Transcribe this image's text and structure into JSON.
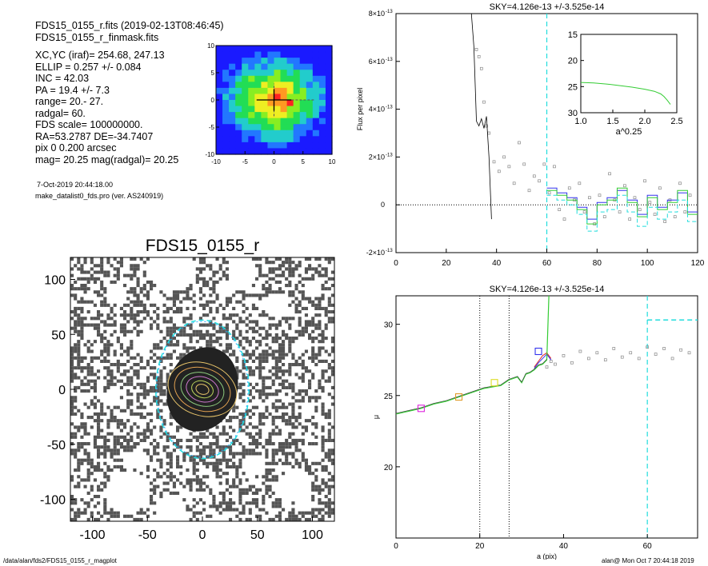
{
  "header": {
    "line1": "FDS15_0155_r.fits  (2019-02-13T08:46:45)",
    "line2": "FDS15_0155_r_finmask.fits"
  },
  "info_lines": [
    "XC,YC (iraf)=   254.68, 247.13",
    "ELLIP = 0.257 +/- 0.084",
    "INC   = 42.03",
    "PA    =  19.4 +/-   7.3",
    "range=  20.-  27.",
    "radgal=  60.",
    "FDS scale=  100000000.",
    "RA=53.2787   DE=-34.7407",
    "pix 0 0.200 arcsec",
    "mag=  20.25  mag(radgal)=  20.25"
  ],
  "date_line": "7-Oct-2019 20:44:18.00",
  "program_line": "make_datalist0_fds.pro (ver. AS240919)",
  "footer": {
    "path": "/data/alan/fds2/FDS15_0155_r_magplot",
    "user": "alan@  Mon Oct  7 20:44:18 2019"
  },
  "colors": {
    "black": "#000000",
    "green": "#33cc33",
    "blue": "#3333ee",
    "cyan": "#22dddd",
    "grey": "#888888",
    "magenta": "#dd22dd",
    "orange": "#e09a2a",
    "yellow_box": "#dddd22"
  },
  "chart_data": [
    {
      "id": "thumbnail",
      "type": "heatmap",
      "xlim": [
        -10,
        10
      ],
      "ylim": [
        -10,
        10
      ],
      "xticks": [
        "-10",
        "-5",
        "0",
        "5",
        "10"
      ],
      "yticks": [
        "10",
        "5",
        "0",
        "-5",
        "-10"
      ],
      "center": [
        0,
        0
      ]
    },
    {
      "id": "image",
      "type": "scatter",
      "title": "FDS15_0155_r",
      "xlim": [
        -120,
        120
      ],
      "ylim": [
        -120,
        120
      ],
      "xticks": [
        "-100",
        "-50",
        "0",
        "50",
        "100"
      ],
      "yticks": [
        "100",
        "50",
        "0",
        "-50",
        "-100"
      ],
      "outer_ellipse_a": 60,
      "ellipticity": 0.257,
      "pa_deg": 19.4
    },
    {
      "id": "sky",
      "type": "line",
      "title": "SKY=4.126e-13 +/-3.525e-14",
      "ylabel": "Flux per pixel",
      "xlim": [
        0,
        120
      ],
      "ylim": [
        -2e-13,
        8e-13
      ],
      "xticks": [
        "0",
        "20",
        "40",
        "60",
        "80",
        "100",
        "120"
      ],
      "yticks": [
        {
          "value": 8e-13,
          "label": "8×10",
          "exp": "-13"
        },
        {
          "value": 6e-13,
          "label": "6×10",
          "exp": "-13"
        },
        {
          "value": 4e-13,
          "label": "4×10",
          "exp": "-13"
        },
        {
          "value": 2e-13,
          "label": "2×10",
          "exp": "-13"
        },
        {
          "value": 0,
          "label": "0",
          "exp": ""
        },
        {
          "value": -2e-13,
          "label": "-2×10",
          "exp": "-13"
        }
      ],
      "radgal_marker": 60,
      "series_black": [
        [
          30,
          8e-13
        ],
        [
          31,
          6.6e-13
        ],
        [
          32,
          3.5e-13
        ],
        [
          33,
          3.3e-13
        ],
        [
          34,
          3.6e-13
        ],
        [
          35,
          3.2e-13
        ],
        [
          36,
          3.7e-13
        ],
        [
          37,
          2e-13
        ],
        [
          38,
          -6e-14
        ]
      ],
      "black_points": [
        [
          32,
          6.5e-13
        ],
        [
          33,
          6.2e-13
        ],
        [
          34,
          5.7e-13
        ],
        [
          35,
          4.3e-13
        ],
        [
          36,
          3.3e-13
        ],
        [
          37,
          3e-13
        ],
        [
          39,
          1.8e-13
        ],
        [
          41,
          1.4e-13
        ],
        [
          43,
          2e-13
        ],
        [
          45,
          1.6e-13
        ],
        [
          47,
          9e-14
        ],
        [
          49,
          2.6e-13
        ],
        [
          51,
          1.7e-13
        ],
        [
          53,
          6e-14
        ],
        [
          55,
          1.2e-13
        ],
        [
          57,
          1e-13
        ],
        [
          59,
          1.7e-13
        ],
        [
          61,
          5e-14
        ],
        [
          63,
          1.6e-13
        ],
        [
          65,
          -2e-14
        ],
        [
          67,
          -6e-14
        ],
        [
          69,
          7e-14
        ],
        [
          71,
          2e-14
        ],
        [
          73,
          9e-14
        ],
        [
          75,
          -3e-14
        ],
        [
          77,
          3e-14
        ],
        [
          79,
          -8e-14
        ],
        [
          81,
          4e-14
        ],
        [
          83,
          -5e-14
        ],
        [
          85,
          1.3e-13
        ],
        [
          87,
          2e-14
        ],
        [
          89,
          -3e-14
        ],
        [
          91,
          8e-14
        ],
        [
          93,
          -6e-14
        ],
        [
          95,
          3e-14
        ],
        [
          97,
          -2e-14
        ],
        [
          99,
          1e-13
        ],
        [
          101,
          1e-14
        ],
        [
          103,
          -4e-14
        ],
        [
          105,
          7e-14
        ],
        [
          107,
          -7e-14
        ],
        [
          109,
          2e-14
        ],
        [
          111,
          -5e-14
        ],
        [
          113,
          9e-14
        ],
        [
          115,
          -3e-14
        ],
        [
          117,
          4e-14
        ]
      ],
      "series_steps": [
        {
          "color": "blue",
          "values": [
            [
              60,
              7e-14
            ],
            [
              64,
              5e-14
            ],
            [
              68,
              3e-14
            ],
            [
              72,
              -1e-14
            ],
            [
              76,
              -6e-14
            ],
            [
              80,
              1e-14
            ],
            [
              84,
              3e-14
            ],
            [
              88,
              6e-14
            ],
            [
              92,
              2e-14
            ],
            [
              96,
              -4e-14
            ],
            [
              100,
              4e-14
            ],
            [
              104,
              -1e-14
            ],
            [
              108,
              2e-14
            ],
            [
              112,
              5e-14
            ],
            [
              116,
              -3e-14
            ],
            [
              120,
              -3e-14
            ]
          ]
        },
        {
          "color": "green",
          "values": [
            [
              60,
              6e-14
            ],
            [
              64,
              4e-14
            ],
            [
              68,
              2e-14
            ],
            [
              72,
              -2e-14
            ],
            [
              76,
              -8e-14
            ],
            [
              80,
              0.0
            ],
            [
              84,
              2e-14
            ],
            [
              88,
              7e-14
            ],
            [
              92,
              1e-14
            ],
            [
              96,
              -5e-14
            ],
            [
              100,
              3e-14
            ],
            [
              104,
              -2e-14
            ],
            [
              108,
              1e-14
            ],
            [
              112,
              6e-14
            ],
            [
              116,
              -4e-14
            ],
            [
              120,
              -4e-14
            ]
          ]
        },
        {
          "color": "cyan",
          "values": [
            [
              60,
              4e-14
            ],
            [
              64,
              2e-14
            ],
            [
              68,
              0.0
            ],
            [
              72,
              -4e-14
            ],
            [
              76,
              -1.1e-13
            ],
            [
              80,
              -3e-14
            ],
            [
              84,
              -2e-14
            ],
            [
              88,
              4e-14
            ],
            [
              92,
              -3e-14
            ],
            [
              96,
              -9e-14
            ],
            [
              100,
              -1e-14
            ],
            [
              104,
              -6e-14
            ],
            [
              108,
              -3e-14
            ],
            [
              112,
              2e-14
            ],
            [
              116,
              -7e-14
            ],
            [
              120,
              -7e-14
            ]
          ]
        }
      ]
    },
    {
      "id": "inset",
      "type": "line",
      "xlabel": "a^0.25",
      "xlim": [
        1.0,
        2.5
      ],
      "ylim": [
        15,
        30
      ],
      "xticks": [
        "1.0",
        "1.5",
        "2.0",
        "2.5"
      ],
      "yticks": [
        "15",
        "20",
        "25",
        "30"
      ],
      "series_green": [
        [
          1.0,
          24.2
        ],
        [
          1.2,
          24.3
        ],
        [
          1.4,
          24.5
        ],
        [
          1.6,
          24.8
        ],
        [
          1.8,
          25.1
        ],
        [
          2.0,
          25.5
        ],
        [
          2.15,
          25.9
        ],
        [
          2.25,
          26.4
        ],
        [
          2.3,
          26.9
        ],
        [
          2.35,
          27.6
        ],
        [
          2.4,
          28.4
        ]
      ]
    },
    {
      "id": "profile",
      "type": "line",
      "title": "SKY=4.126e-13 +/-3.525e-14",
      "xlabel": "a (pix)",
      "ylabel": "μ",
      "xlim": [
        0,
        72
      ],
      "ylim": [
        32,
        15
      ],
      "xticks": [
        "0",
        "20",
        "40",
        "60"
      ],
      "yticks": [
        "20",
        "25",
        "30"
      ],
      "vlines_dotted": [
        20,
        27
      ],
      "radgal_marker": 60,
      "series_green": [
        [
          0,
          23.7
        ],
        [
          3,
          23.9
        ],
        [
          6,
          24.1
        ],
        [
          9,
          24.4
        ],
        [
          12,
          24.6
        ],
        [
          15,
          24.9
        ],
        [
          18,
          25.2
        ],
        [
          21,
          25.5
        ],
        [
          23,
          25.6
        ],
        [
          25,
          25.7
        ],
        [
          27,
          26.1
        ],
        [
          29,
          26.3
        ],
        [
          30,
          25.9
        ],
        [
          31,
          26.5
        ],
        [
          32,
          26.6
        ],
        [
          33,
          26.8
        ],
        [
          34,
          27.1
        ],
        [
          35,
          27.2
        ],
        [
          36,
          27.5
        ],
        [
          36.5,
          32
        ]
      ],
      "series_red": [
        [
          33,
          27.0
        ],
        [
          34,
          27.4
        ],
        [
          35,
          27.8
        ],
        [
          36,
          28.0
        ],
        [
          37,
          27.6
        ]
      ],
      "series_blue": [
        [
          33,
          26.9
        ],
        [
          34,
          27.3
        ],
        [
          35,
          27.6
        ],
        [
          36,
          27.9
        ],
        [
          37,
          27.5
        ]
      ],
      "points_grey": [
        [
          36,
          27.0
        ],
        [
          37,
          27.4
        ],
        [
          38,
          27.2
        ],
        [
          40,
          27.8
        ],
        [
          42,
          27.3
        ],
        [
          44,
          28.1
        ],
        [
          46,
          27.6
        ],
        [
          48,
          28.0
        ],
        [
          50,
          27.5
        ],
        [
          52,
          28.3
        ],
        [
          54,
          27.7
        ],
        [
          56,
          28.0
        ],
        [
          58,
          27.6
        ],
        [
          60,
          28.4
        ],
        [
          62,
          27.9
        ],
        [
          64,
          28.3
        ],
        [
          66,
          27.6
        ],
        [
          68,
          28.2
        ],
        [
          70,
          28.0
        ]
      ],
      "boxes": [
        {
          "x": 6,
          "y": 24.1,
          "color": "magenta"
        },
        {
          "x": 15,
          "y": 24.9,
          "color": "orange"
        },
        {
          "x": 23.5,
          "y": 25.9,
          "color": "yellow_box"
        },
        {
          "x": 34,
          "y": 28.1,
          "color": "blue"
        }
      ],
      "cyan_dash": [
        [
          60,
          30.3
        ],
        [
          72,
          30.3
        ]
      ]
    }
  ]
}
